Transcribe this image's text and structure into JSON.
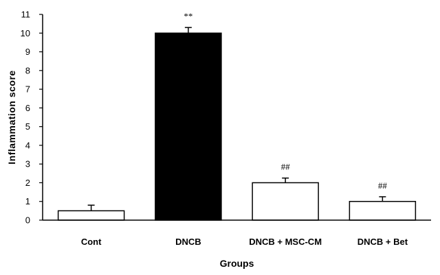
{
  "chart_data": {
    "type": "bar",
    "categories": [
      "Cont",
      "DNCB",
      "DNCB + MSC-CM",
      "DNCB + Bet"
    ],
    "values": [
      0.5,
      10.0,
      2.0,
      1.0
    ],
    "errors": [
      0.3,
      0.3,
      0.25,
      0.25
    ],
    "annotations": [
      "",
      "**",
      "##",
      "##"
    ],
    "bar_colors": [
      "#ffffff",
      "#000000",
      "#ffffff",
      "#ffffff"
    ],
    "xlabel": "Groups",
    "ylabel": "Inflammation score",
    "ylim": [
      0,
      11
    ],
    "yticks": [
      0,
      1,
      2,
      3,
      4,
      5,
      6,
      7,
      8,
      9,
      10,
      11
    ],
    "grid": false,
    "legend": "none"
  }
}
